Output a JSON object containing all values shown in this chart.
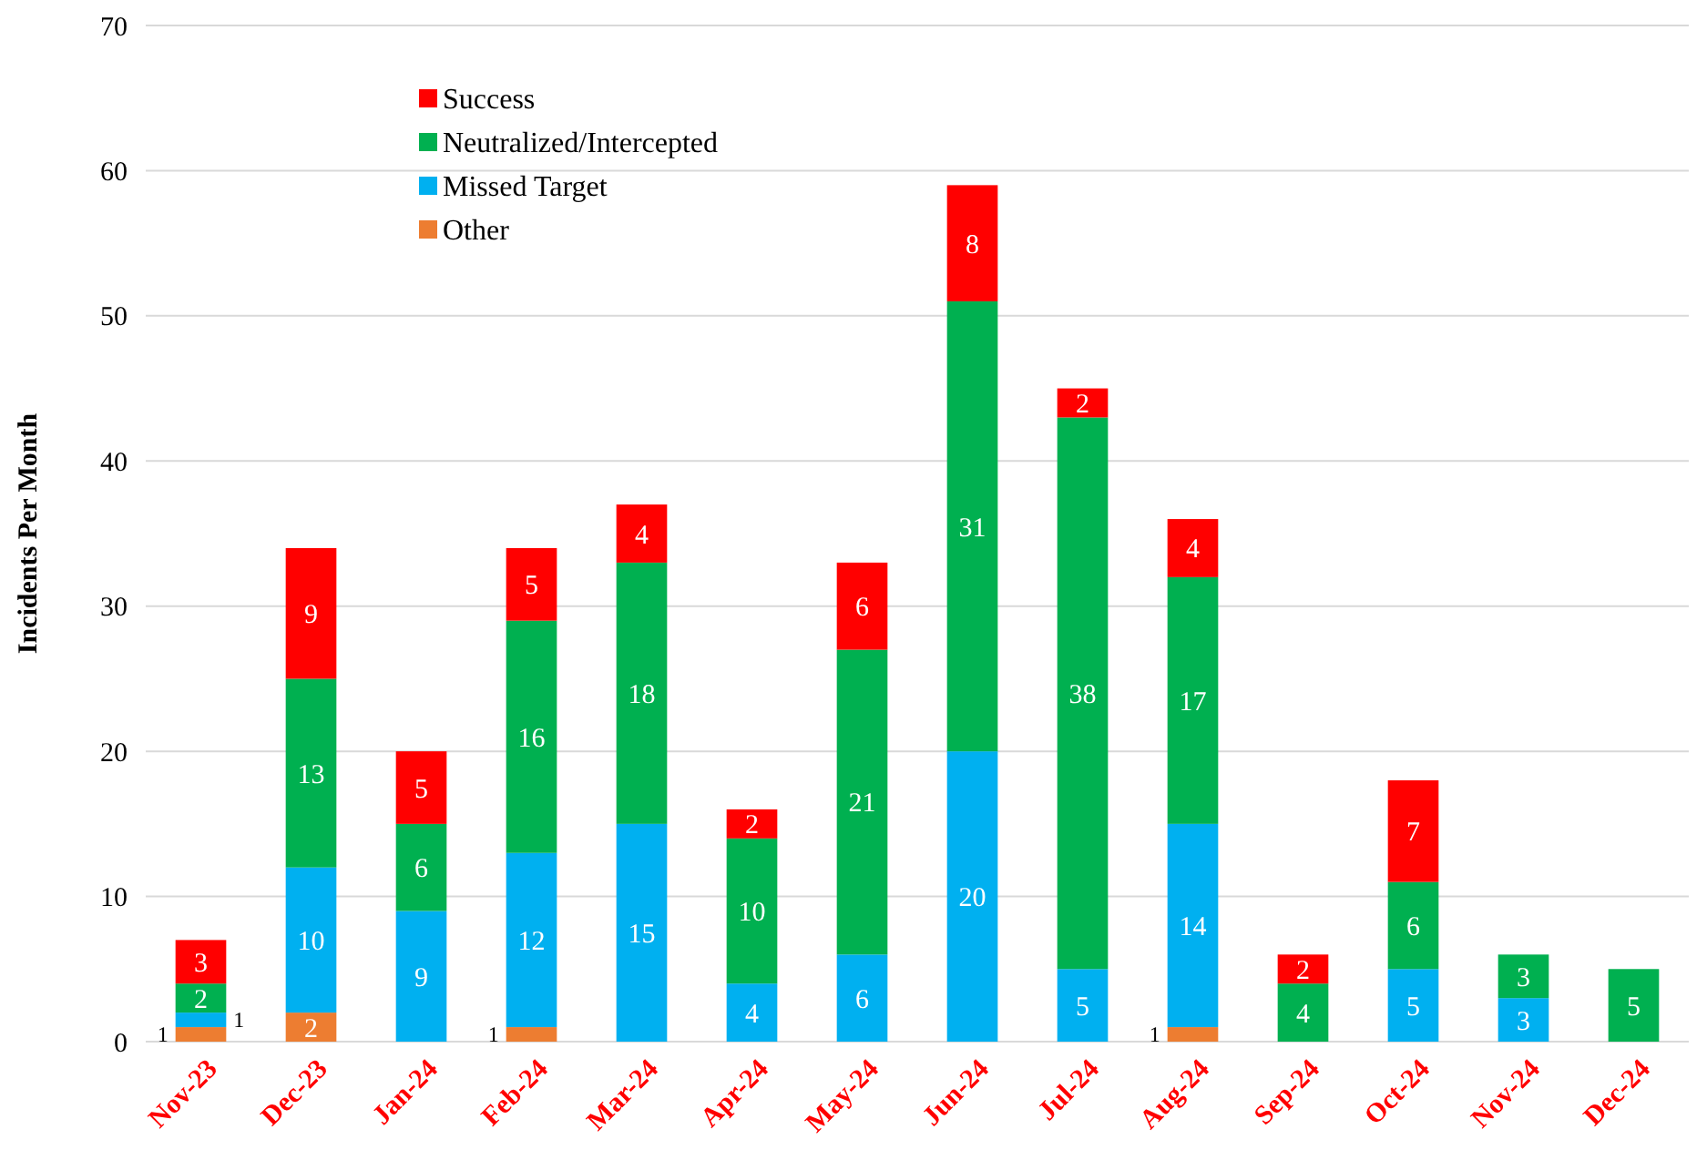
{
  "chart_data": {
    "type": "bar",
    "stacked": true,
    "ylabel": "Incidents Per Month",
    "categories": [
      "Nov-23",
      "Dec-23",
      "Jan-24",
      "Feb-24",
      "Mar-24",
      "Apr-24",
      "May-24",
      "Jun-24",
      "Jul-24",
      "Aug-24",
      "Sep-24",
      "Oct-24",
      "Nov-24",
      "Dec-24"
    ],
    "series": [
      {
        "name": "Other",
        "color": "#ed7d31",
        "values": [
          1,
          2,
          null,
          1,
          null,
          null,
          null,
          null,
          null,
          1,
          null,
          null,
          null,
          null
        ]
      },
      {
        "name": "Missed Target",
        "color": "#00b0f0",
        "values": [
          1,
          10,
          9,
          12,
          15,
          4,
          6,
          20,
          5,
          14,
          null,
          5,
          3,
          null
        ]
      },
      {
        "name": "Neutralized/Intercepted",
        "color": "#00b050",
        "values": [
          2,
          13,
          6,
          16,
          18,
          10,
          21,
          31,
          38,
          17,
          4,
          6,
          3,
          5
        ]
      },
      {
        "name": "Success",
        "color": "#ff0000",
        "values": [
          3,
          9,
          5,
          5,
          4,
          2,
          6,
          8,
          2,
          4,
          2,
          7,
          null,
          null
        ]
      }
    ],
    "ylim": [
      0,
      70
    ],
    "yticks": [
      0,
      10,
      20,
      30,
      40,
      50,
      60,
      70
    ],
    "grid": "y",
    "legend": "top left",
    "data_labels": true
  }
}
